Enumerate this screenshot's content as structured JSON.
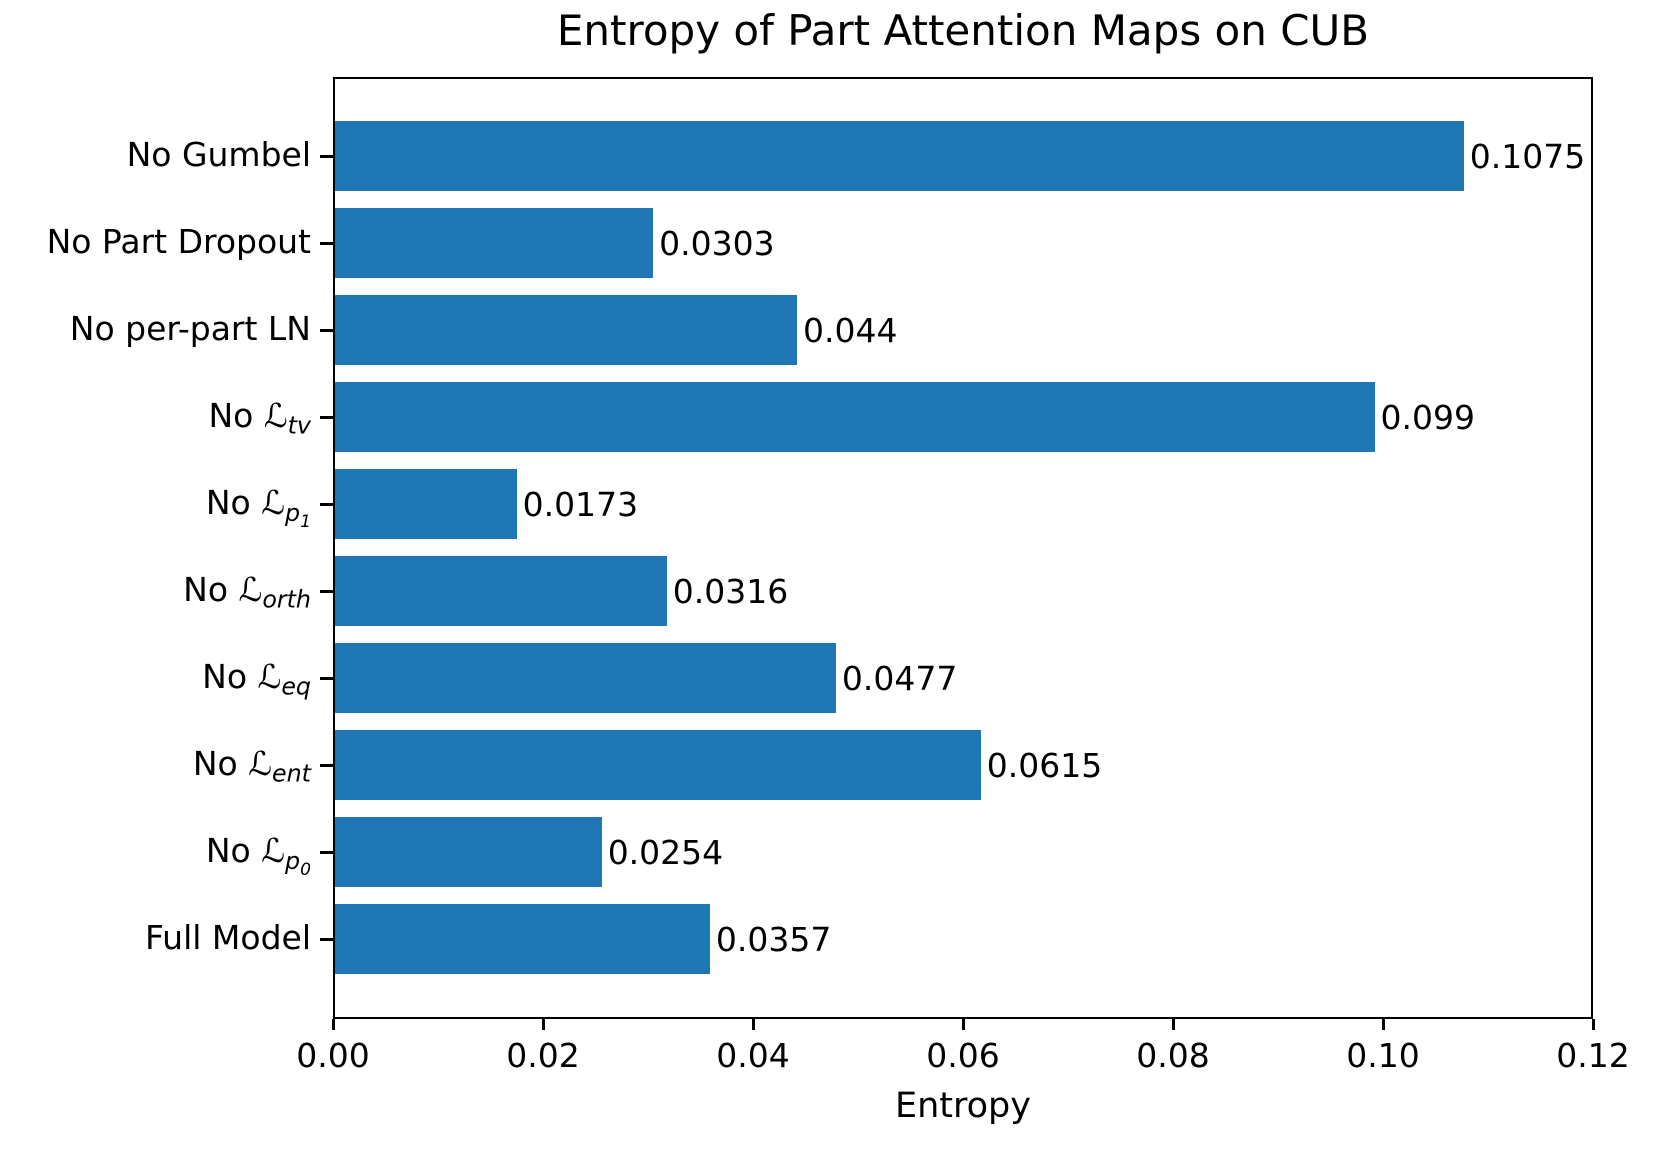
{
  "chart_data": {
    "type": "bar",
    "orientation": "horizontal",
    "title": "Entropy of Part Attention Maps on CUB",
    "xlabel": "Entropy",
    "xlim": [
      0,
      0.12
    ],
    "grid": false,
    "legend": null,
    "bar_color": "#1f77b4",
    "axis_color": "#000000",
    "categories": [
      {
        "prefix": "No Gumbel"
      },
      {
        "prefix": "No Part Dropout"
      },
      {
        "prefix": "No per-part LN"
      },
      {
        "prefix": "No ",
        "mathcal": "ℒ",
        "sub": "tv"
      },
      {
        "prefix": "No ",
        "mathcal": "ℒ",
        "sub": "p",
        "subsub": "1"
      },
      {
        "prefix": "No ",
        "mathcal": "ℒ",
        "sub": "orth"
      },
      {
        "prefix": "No ",
        "mathcal": "ℒ",
        "sub": "eq"
      },
      {
        "prefix": "No ",
        "mathcal": "ℒ",
        "sub": "ent"
      },
      {
        "prefix": "No ",
        "mathcal": "ℒ",
        "sub": "p",
        "subsub": "0"
      },
      {
        "prefix": "Full Model"
      }
    ],
    "values": [
      0.1075,
      0.0303,
      0.044,
      0.099,
      0.0173,
      0.0316,
      0.0477,
      0.0615,
      0.0254,
      0.0357
    ],
    "value_labels": [
      "0.1075",
      "0.0303",
      "0.044",
      "0.099",
      "0.0173",
      "0.0316",
      "0.0477",
      "0.0615",
      "0.0254",
      "0.0357"
    ],
    "xticks": [
      {
        "value": 0.0,
        "label": "0.00"
      },
      {
        "value": 0.02,
        "label": "0.02"
      },
      {
        "value": 0.04,
        "label": "0.04"
      },
      {
        "value": 0.06,
        "label": "0.06"
      },
      {
        "value": 0.08,
        "label": "0.08"
      },
      {
        "value": 0.1,
        "label": "0.10"
      },
      {
        "value": 0.12,
        "label": "0.12"
      }
    ]
  }
}
